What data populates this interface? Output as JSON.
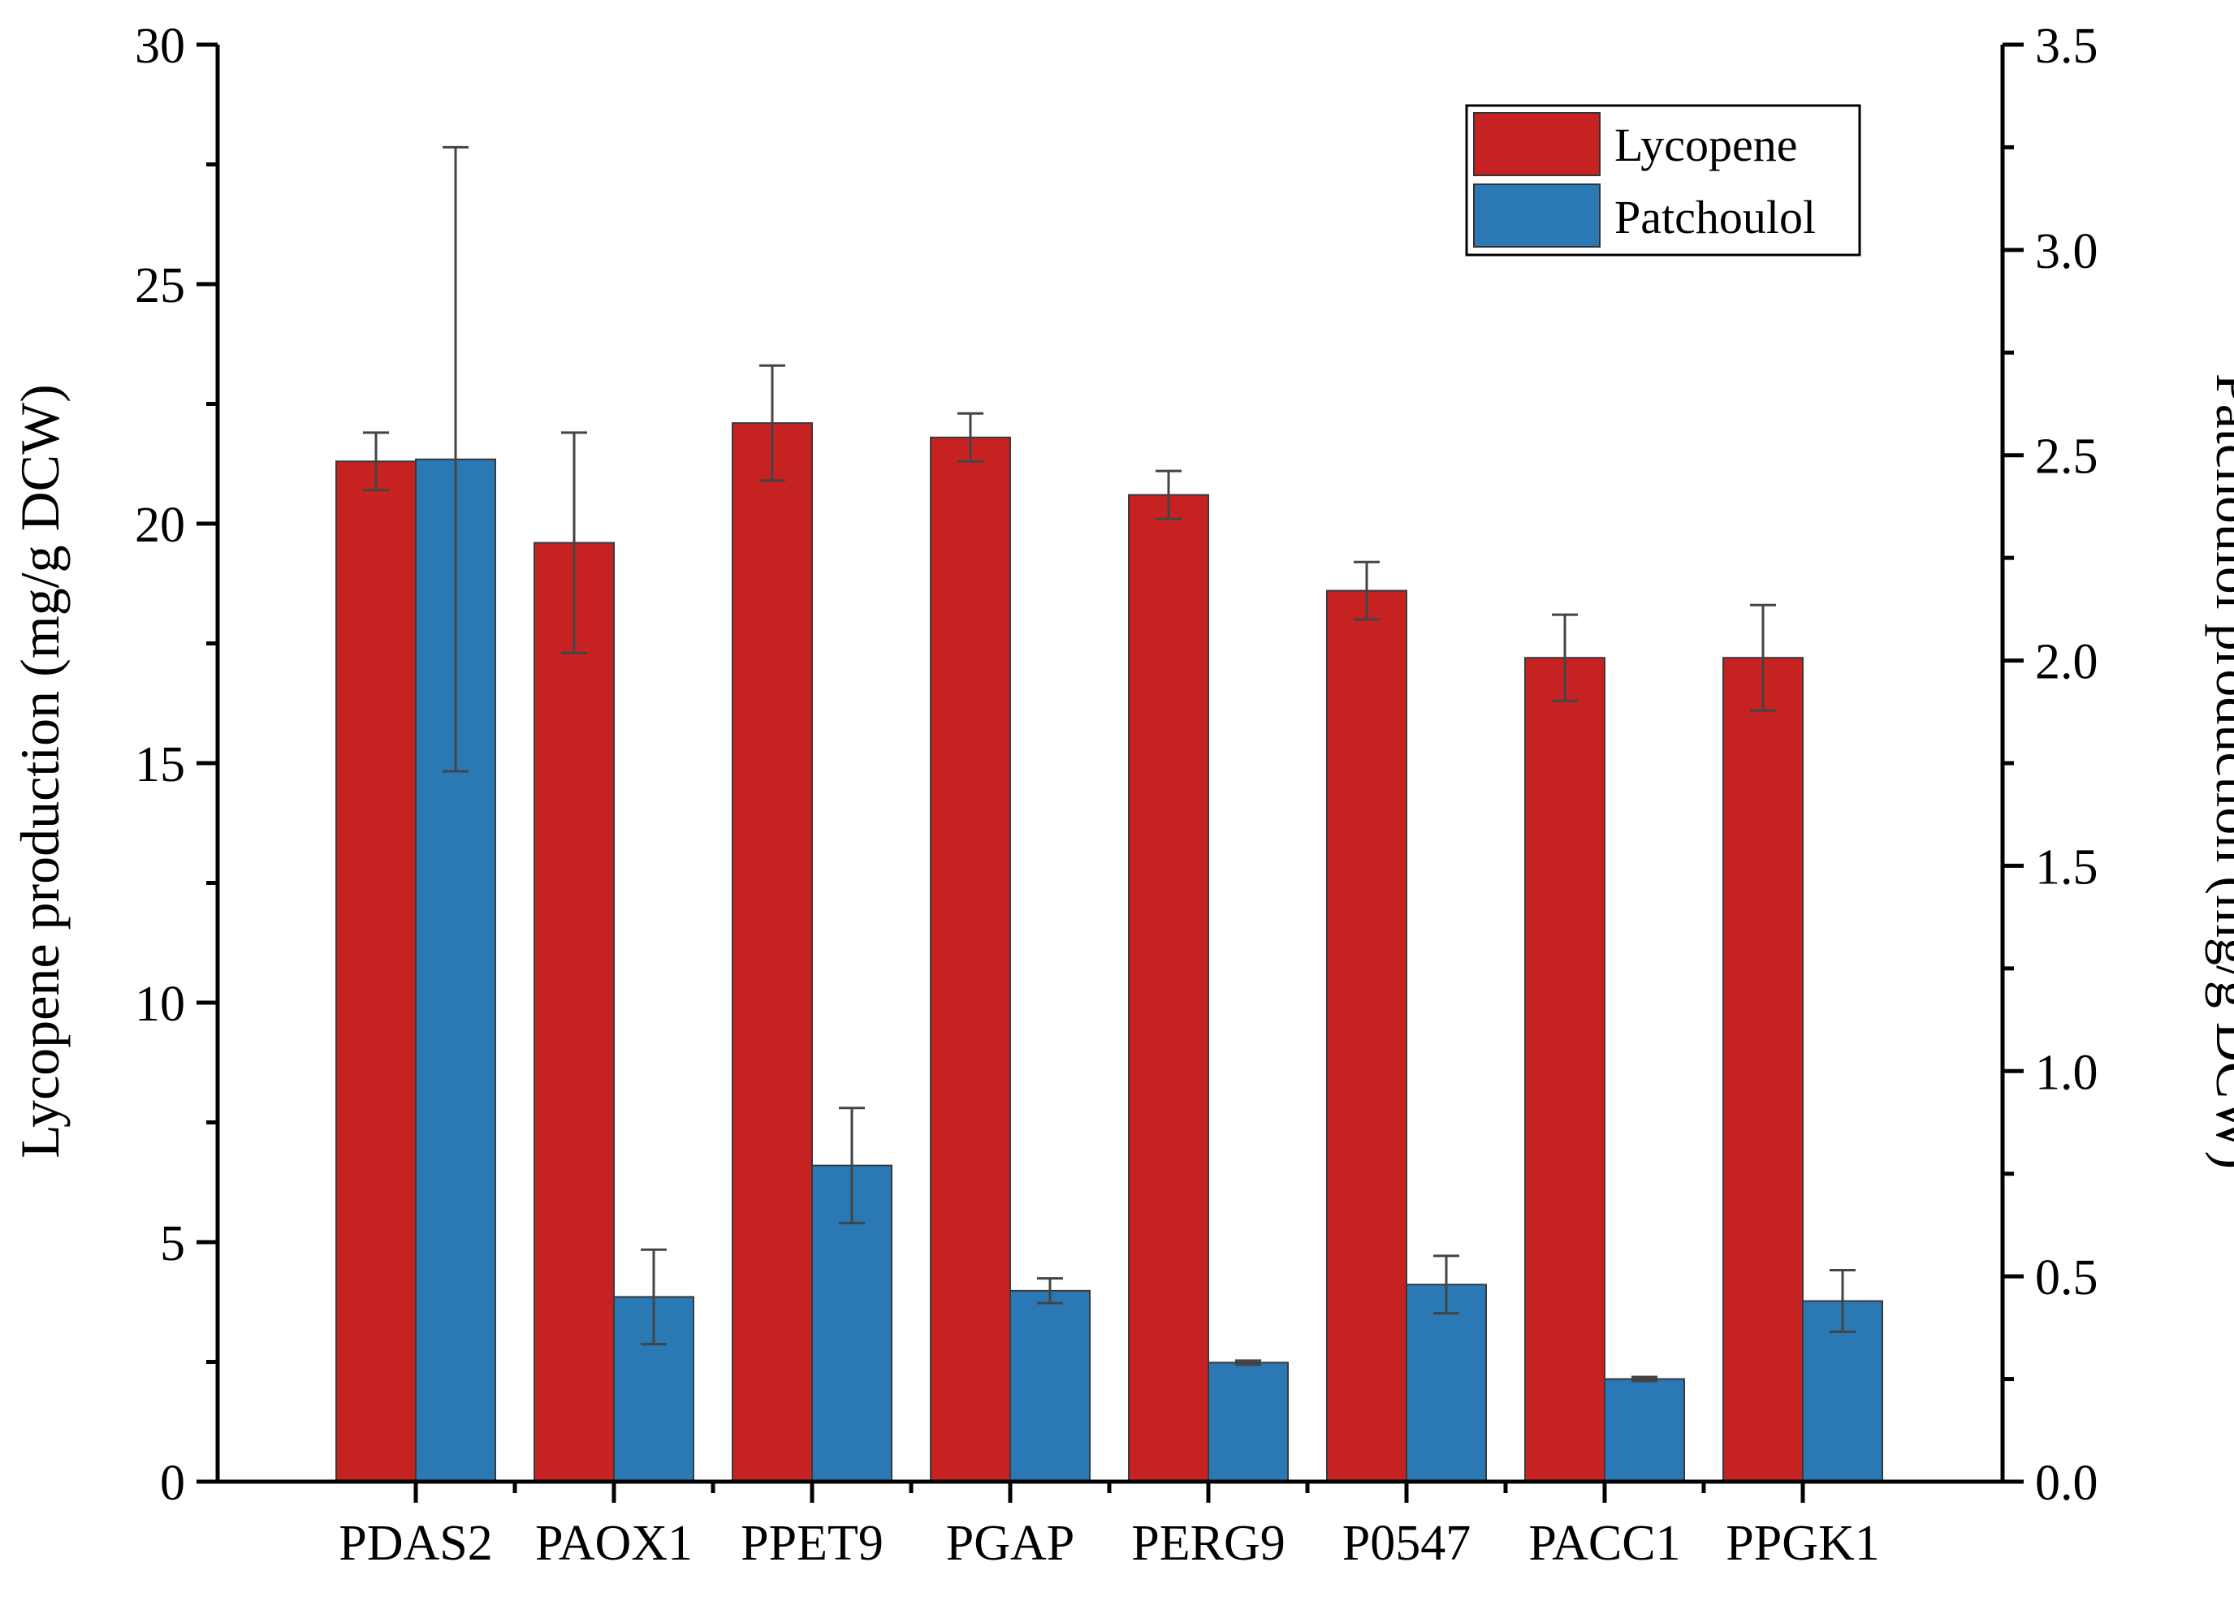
{
  "chart_data": {
    "type": "bar",
    "title": "",
    "xlabel": "",
    "ylabel": "Lycopene production (mg/g DCW)",
    "y2label": "Patchoulol production (mg/g DCW)",
    "ylim": [
      0,
      30
    ],
    "y2lim": [
      0,
      3.5
    ],
    "yticks": [
      "0",
      "5",
      "10",
      "15",
      "20",
      "25",
      "30"
    ],
    "y2ticks": [
      "0.0",
      "0.5",
      "1.0",
      "1.5",
      "2.0",
      "2.5",
      "3.0",
      "3.5"
    ],
    "grid": false,
    "legend_position": "top-right",
    "categories": [
      "PDAS2",
      "PAOX1",
      "PPET9",
      "PGAP",
      "PERG9",
      "P0547",
      "PACC1",
      "PPGK1"
    ],
    "series": [
      {
        "name": "Lycopene",
        "axis": "left",
        "color": "#c62222",
        "values": [
          21.3,
          19.6,
          22.1,
          21.8,
          20.6,
          18.6,
          17.2,
          17.2
        ],
        "errors": [
          0.6,
          2.3,
          1.2,
          0.5,
          0.5,
          0.6,
          0.9,
          1.1
        ]
      },
      {
        "name": "Patchoulol",
        "axis": "right",
        "color": "#2a78b4",
        "values": [
          2.49,
          0.45,
          0.77,
          0.465,
          0.29,
          0.48,
          0.25,
          0.44
        ],
        "errors": [
          0.76,
          0.115,
          0.14,
          0.03,
          0.005,
          0.07,
          0.005,
          0.075
        ]
      }
    ]
  }
}
